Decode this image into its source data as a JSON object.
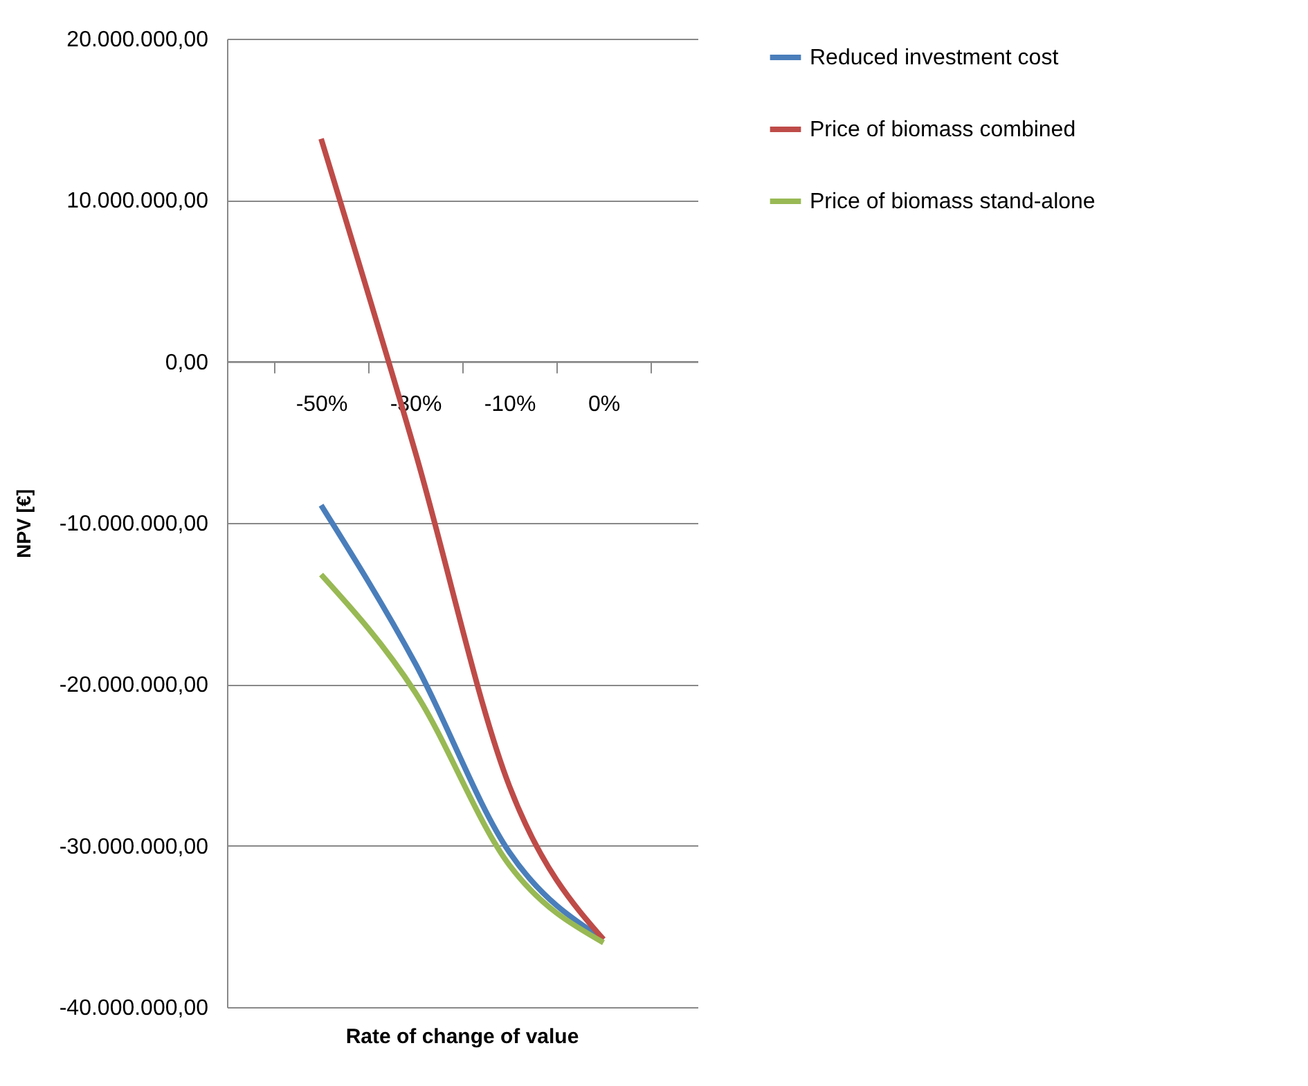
{
  "chart_data": {
    "type": "line",
    "xlabel": "Rate of change of value",
    "ylabel": "NPV [€]",
    "categories": [
      "-50%",
      "-30%",
      "-10%",
      "0%"
    ],
    "series": [
      {
        "name": "Reduced investment cost",
        "color": "#4a7ebb",
        "values": [
          -8900000,
          -18700000,
          -30400000,
          -35800000
        ]
      },
      {
        "name": "Price of biomass combined",
        "color": "#be4b48",
        "values": [
          13800000,
          -5600000,
          -26300000,
          -35800000
        ]
      },
      {
        "name": "Price of biomass stand-alone",
        "color": "#98b954",
        "values": [
          -13200000,
          -20500000,
          -31200000,
          -36000000
        ]
      }
    ],
    "ylim": [
      -40000000,
      20000000
    ],
    "yticks": [
      {
        "value": -40000000,
        "label": "-40.000.000,00"
      },
      {
        "value": -30000000,
        "label": "-30.000.000,00"
      },
      {
        "value": -20000000,
        "label": "-20.000.000,00"
      },
      {
        "value": -10000000,
        "label": "-10.000.000,00"
      },
      {
        "value": 0,
        "label": "0,00"
      },
      {
        "value": 10000000,
        "label": "10.000.000,00"
      },
      {
        "value": 20000000,
        "label": "20.000.000,00"
      }
    ],
    "grid": "y",
    "legend": "right",
    "marker": "none",
    "line_style": "solid"
  }
}
